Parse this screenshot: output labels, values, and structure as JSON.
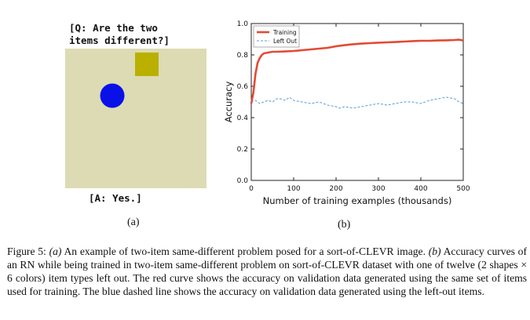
{
  "figure_a": {
    "question_line1": "[Q: Are the two",
    "question_line2": "items different?]",
    "answer": "[A: Yes.]",
    "panel_label": "(a)",
    "scene": {
      "background_color": "#dcdbb3",
      "items": [
        {
          "shape": "square",
          "color": "#b9b000"
        },
        {
          "shape": "circle",
          "color": "#0a10e8"
        }
      ]
    }
  },
  "figure_b": {
    "panel_label": "(b)"
  },
  "chart_data": {
    "type": "line",
    "title": "",
    "xlabel": "Number of training examples (thousands)",
    "ylabel": "Accuracy",
    "xlim": [
      0,
      500
    ],
    "ylim": [
      0.0,
      1.0
    ],
    "x_ticks": [
      0,
      100,
      200,
      300,
      400,
      500
    ],
    "y_ticks": [
      "0.0",
      "0.2",
      "0.4",
      "0.6",
      "0.8",
      "1.0"
    ],
    "legend_position": "top-left",
    "series": [
      {
        "name": "Training",
        "color": "#e34a33",
        "style": "solid",
        "x": [
          0,
          5,
          10,
          15,
          20,
          25,
          30,
          40,
          50,
          60,
          80,
          100,
          120,
          140,
          160,
          180,
          200,
          220,
          240,
          260,
          280,
          300,
          320,
          340,
          360,
          380,
          400,
          420,
          440,
          460,
          480,
          490,
          500
        ],
        "y": [
          0.49,
          0.56,
          0.68,
          0.75,
          0.78,
          0.8,
          0.81,
          0.815,
          0.82,
          0.82,
          0.822,
          0.825,
          0.83,
          0.835,
          0.84,
          0.845,
          0.855,
          0.862,
          0.868,
          0.872,
          0.875,
          0.878,
          0.88,
          0.882,
          0.885,
          0.888,
          0.89,
          0.89,
          0.892,
          0.893,
          0.895,
          0.897,
          0.892
        ]
      },
      {
        "name": "Left Out",
        "color": "#5b9bd5",
        "style": "dashed",
        "x": [
          0,
          10,
          20,
          30,
          40,
          50,
          60,
          70,
          80,
          90,
          100,
          120,
          140,
          160,
          180,
          200,
          210,
          220,
          240,
          260,
          280,
          300,
          320,
          340,
          360,
          380,
          400,
          420,
          440,
          460,
          480,
          490,
          500
        ],
        "y": [
          0.5,
          0.51,
          0.49,
          0.5,
          0.51,
          0.5,
          0.52,
          0.52,
          0.51,
          0.53,
          0.51,
          0.5,
          0.49,
          0.5,
          0.48,
          0.47,
          0.46,
          0.47,
          0.46,
          0.47,
          0.48,
          0.49,
          0.48,
          0.49,
          0.5,
          0.5,
          0.49,
          0.51,
          0.52,
          0.53,
          0.52,
          0.5,
          0.49
        ]
      }
    ]
  },
  "caption": {
    "lead": "Figure 5: ",
    "part_a_label": "(a)",
    "part_a_text": " An example of two-item same-different problem posed for a sort-of-CLEVR image. ",
    "part_b_label": "(b)",
    "part_b_text": " Accuracy curves of an RN while being trained in two-item same-different problem on sort-of-CLEVR dataset with one of twelve (2 shapes × 6 colors) item types left out. The red curve shows the accuracy on validation data generated using the same set of items used for training. The blue dashed line shows the accuracy on validation data generated using the left-out items."
  }
}
